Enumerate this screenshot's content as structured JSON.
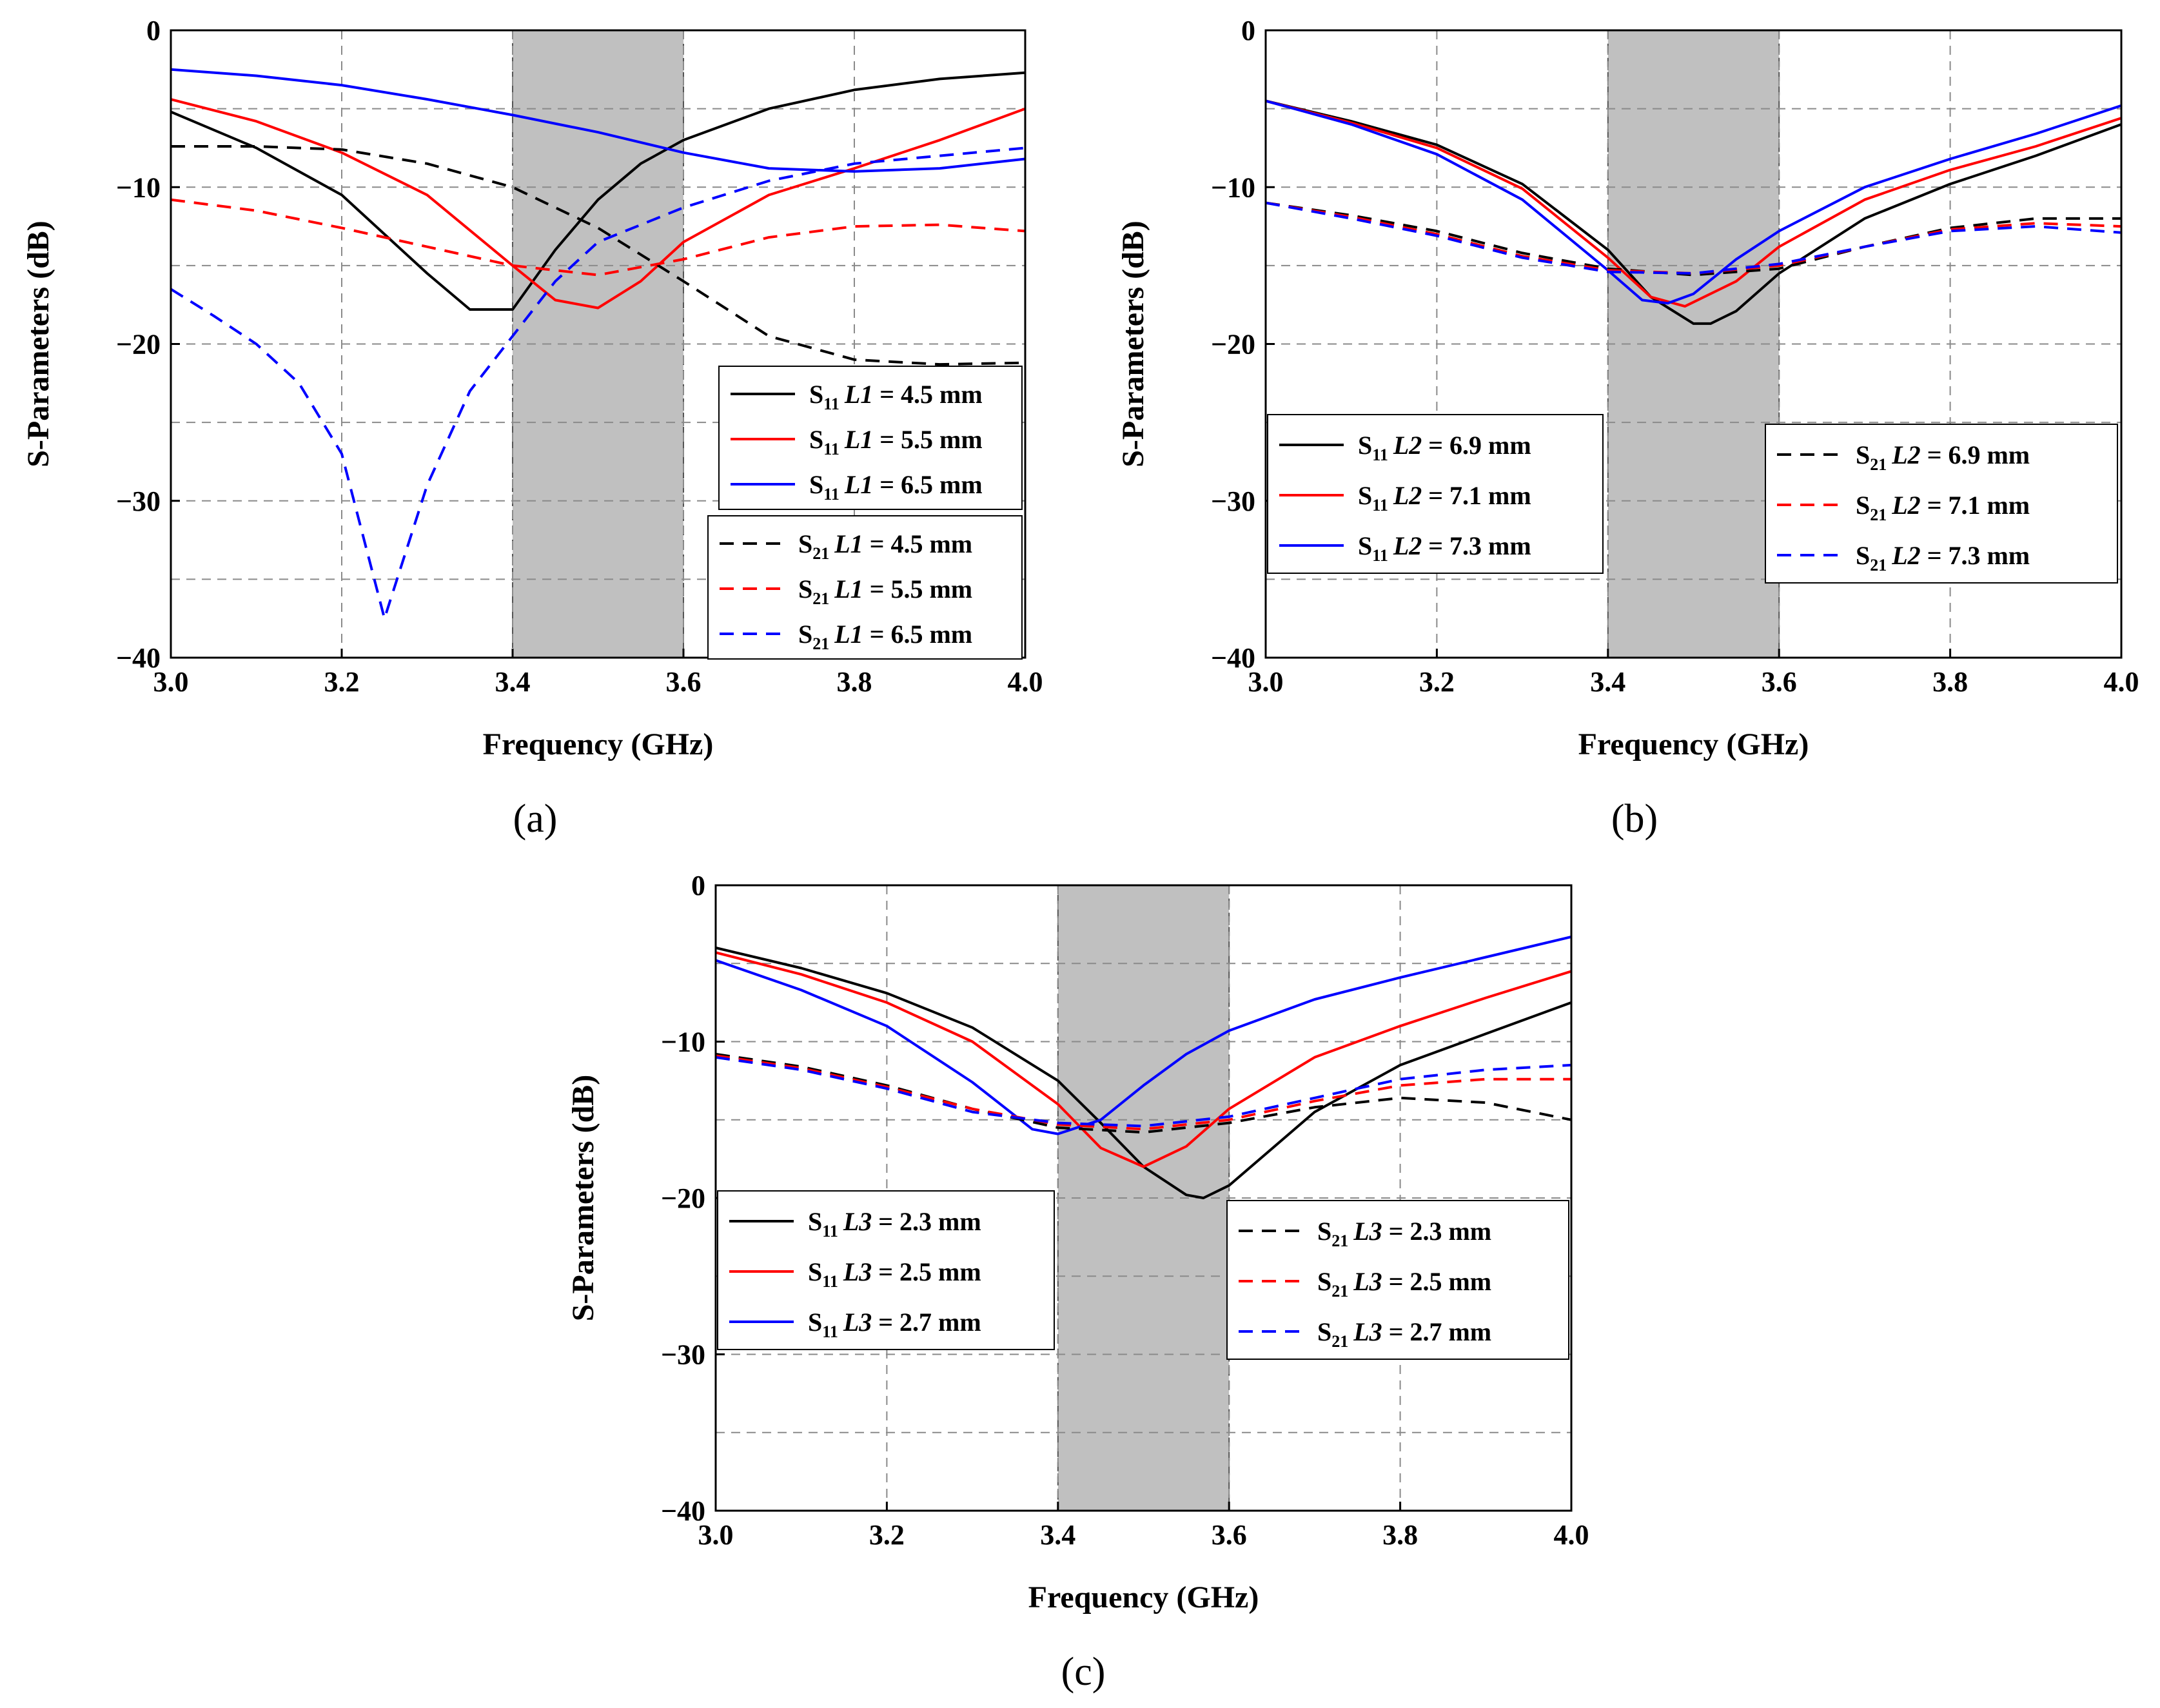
{
  "figure": {
    "captions": [
      "(a)",
      "(b)",
      "(c)"
    ]
  },
  "colors": {
    "black": "#000000",
    "red": "#ff0000",
    "blue": "#0000ff",
    "band": "#c0c0c0"
  },
  "chart_data": [
    {
      "id": "a",
      "type": "line",
      "caption": "(a)",
      "xlabel": "Frequency (GHz)",
      "ylabel": "S-Parameters (dB)",
      "xlim": [
        3.0,
        4.0
      ],
      "ylim": [
        -40,
        0
      ],
      "xticks": [
        "3.0",
        "3.2",
        "3.4",
        "3.6",
        "3.8",
        "4.0"
      ],
      "yticks": [
        "0",
        "-10",
        "-20",
        "-30",
        "-40"
      ],
      "grid": true,
      "shaded_band": [
        3.4,
        3.6
      ],
      "series": [
        {
          "name": "S11 L1 = 4.5 mm",
          "param": "S",
          "sub": "11",
          "var": "L1",
          "value": "= 4.5 mm",
          "color": "black",
          "dash": false,
          "x": [
            3.0,
            3.1,
            3.2,
            3.3,
            3.35,
            3.4,
            3.45,
            3.5,
            3.55,
            3.6,
            3.7,
            3.8,
            3.9,
            4.0
          ],
          "y": [
            -5.2,
            -7.5,
            -10.5,
            -15.5,
            -17.8,
            -17.8,
            -14.0,
            -10.8,
            -8.5,
            -7.0,
            -5.0,
            -3.8,
            -3.1,
            -2.7
          ]
        },
        {
          "name": "S11 L1 = 5.5 mm",
          "param": "S",
          "sub": "11",
          "var": "L1",
          "value": "= 5.5 mm",
          "color": "red",
          "dash": false,
          "x": [
            3.0,
            3.1,
            3.2,
            3.3,
            3.4,
            3.45,
            3.5,
            3.55,
            3.6,
            3.7,
            3.8,
            3.9,
            4.0
          ],
          "y": [
            -4.4,
            -5.8,
            -7.8,
            -10.5,
            -15.0,
            -17.2,
            -17.7,
            -16.0,
            -13.5,
            -10.5,
            -8.8,
            -7.0,
            -5.0
          ]
        },
        {
          "name": "S11 L1 = 6.5 mm",
          "param": "S",
          "sub": "11",
          "var": "L1",
          "value": "= 6.5 mm",
          "color": "blue",
          "dash": false,
          "x": [
            3.0,
            3.1,
            3.2,
            3.3,
            3.4,
            3.5,
            3.6,
            3.7,
            3.8,
            3.9,
            4.0
          ],
          "y": [
            -2.5,
            -2.9,
            -3.5,
            -4.4,
            -5.4,
            -6.5,
            -7.8,
            -8.8,
            -9.0,
            -8.8,
            -8.2
          ]
        },
        {
          "name": "S21 L1 = 4.5 mm",
          "param": "S",
          "sub": "21",
          "var": "L1",
          "value": "= 4.5 mm",
          "color": "black",
          "dash": true,
          "x": [
            3.0,
            3.1,
            3.2,
            3.3,
            3.4,
            3.5,
            3.6,
            3.7,
            3.8,
            3.9,
            4.0
          ],
          "y": [
            -7.4,
            -7.4,
            -7.6,
            -8.5,
            -10.0,
            -12.6,
            -16.0,
            -19.5,
            -21.0,
            -21.3,
            -21.2
          ]
        },
        {
          "name": "S21 L1 = 5.5 mm",
          "param": "S",
          "sub": "21",
          "var": "L1",
          "value": "= 5.5 mm",
          "color": "red",
          "dash": true,
          "x": [
            3.0,
            3.1,
            3.2,
            3.3,
            3.4,
            3.5,
            3.6,
            3.7,
            3.8,
            3.9,
            4.0
          ],
          "y": [
            -10.8,
            -11.5,
            -12.6,
            -13.8,
            -15.0,
            -15.6,
            -14.6,
            -13.2,
            -12.5,
            -12.4,
            -12.8
          ]
        },
        {
          "name": "S21 L1 = 6.5 mm",
          "param": "S",
          "sub": "21",
          "var": "L1",
          "value": "= 6.5 mm",
          "color": "blue",
          "dash": true,
          "x": [
            3.0,
            3.05,
            3.1,
            3.15,
            3.2,
            3.25,
            3.3,
            3.35,
            3.4,
            3.45,
            3.5,
            3.6,
            3.7,
            3.8,
            3.9,
            4.0
          ],
          "y": [
            -16.5,
            -18.2,
            -20.0,
            -22.5,
            -27.0,
            -37.5,
            -29.0,
            -23.0,
            -19.5,
            -16.0,
            -13.5,
            -11.3,
            -9.6,
            -8.5,
            -8.0,
            -7.5
          ]
        }
      ]
    },
    {
      "id": "b",
      "type": "line",
      "caption": "(b)",
      "xlabel": "Frequency (GHz)",
      "ylabel": "S-Parameters (dB)",
      "xlim": [
        3.0,
        4.0
      ],
      "ylim": [
        -40,
        0
      ],
      "xticks": [
        "3.0",
        "3.2",
        "3.4",
        "3.6",
        "3.8",
        "4.0"
      ],
      "yticks": [
        "0",
        "-10",
        "-20",
        "-30",
        "-40"
      ],
      "grid": true,
      "shaded_band": [
        3.4,
        3.6
      ],
      "series": [
        {
          "name": "S11 L2 = 6.9 mm",
          "param": "S",
          "sub": "11",
          "var": "L2",
          "value": "= 6.9 mm",
          "color": "black",
          "dash": false,
          "x": [
            3.0,
            3.1,
            3.2,
            3.3,
            3.4,
            3.45,
            3.5,
            3.52,
            3.55,
            3.6,
            3.7,
            3.8,
            3.9,
            4.0
          ],
          "y": [
            -4.5,
            -5.8,
            -7.3,
            -9.8,
            -14.0,
            -17.0,
            -18.7,
            -18.7,
            -17.9,
            -15.5,
            -12.0,
            -9.8,
            -8.0,
            -6.0
          ]
        },
        {
          "name": "S11 L2 = 7.1 mm",
          "param": "S",
          "sub": "11",
          "var": "L2",
          "value": "= 7.1 mm",
          "color": "red",
          "dash": false,
          "x": [
            3.0,
            3.1,
            3.2,
            3.3,
            3.4,
            3.45,
            3.49,
            3.55,
            3.6,
            3.7,
            3.8,
            3.9,
            4.0
          ],
          "y": [
            -4.5,
            -5.9,
            -7.5,
            -10.1,
            -14.5,
            -17.0,
            -17.6,
            -16.0,
            -13.8,
            -10.8,
            -8.9,
            -7.4,
            -5.6
          ]
        },
        {
          "name": "S11 L2 = 7.3 mm",
          "param": "S",
          "sub": "11",
          "var": "L2",
          "value": "= 7.3 mm",
          "color": "blue",
          "dash": false,
          "x": [
            3.0,
            3.1,
            3.2,
            3.3,
            3.4,
            3.44,
            3.47,
            3.5,
            3.55,
            3.6,
            3.7,
            3.8,
            3.9,
            4.0
          ],
          "y": [
            -4.5,
            -6.0,
            -7.9,
            -10.8,
            -15.3,
            -17.2,
            -17.4,
            -16.8,
            -14.6,
            -12.8,
            -10.0,
            -8.2,
            -6.6,
            -4.8
          ]
        },
        {
          "name": "S21 L2 = 6.9 mm",
          "param": "S",
          "sub": "21",
          "var": "L2",
          "value": "= 6.9 mm",
          "color": "black",
          "dash": true,
          "x": [
            3.0,
            3.1,
            3.2,
            3.3,
            3.4,
            3.5,
            3.6,
            3.7,
            3.8,
            3.9,
            4.0
          ],
          "y": [
            -11.0,
            -11.8,
            -12.8,
            -14.2,
            -15.2,
            -15.6,
            -15.2,
            -13.8,
            -12.6,
            -12.0,
            -12.0
          ]
        },
        {
          "name": "S21 L2 = 7.1 mm",
          "param": "S",
          "sub": "21",
          "var": "L2",
          "value": "= 7.1 mm",
          "color": "red",
          "dash": true,
          "x": [
            3.0,
            3.1,
            3.2,
            3.3,
            3.4,
            3.5,
            3.6,
            3.7,
            3.8,
            3.9,
            4.0
          ],
          "y": [
            -11.0,
            -11.9,
            -13.0,
            -14.4,
            -15.3,
            -15.5,
            -15.0,
            -13.8,
            -12.7,
            -12.3,
            -12.5
          ]
        },
        {
          "name": "S21 L2 = 7.3 mm",
          "param": "S",
          "sub": "21",
          "var": "L2",
          "value": "= 7.3 mm",
          "color": "blue",
          "dash": true,
          "x": [
            3.0,
            3.1,
            3.2,
            3.3,
            3.4,
            3.5,
            3.6,
            3.7,
            3.8,
            3.9,
            4.0
          ],
          "y": [
            -11.0,
            -12.0,
            -13.1,
            -14.5,
            -15.4,
            -15.5,
            -14.9,
            -13.8,
            -12.8,
            -12.5,
            -12.9
          ]
        }
      ]
    },
    {
      "id": "c",
      "type": "line",
      "caption": "(c)",
      "xlabel": "Frequency (GHz)",
      "ylabel": "S-Parameters (dB)",
      "xlim": [
        3.0,
        4.0
      ],
      "ylim": [
        -40,
        0
      ],
      "xticks": [
        "3.0",
        "3.2",
        "3.4",
        "3.6",
        "3.8",
        "4.0"
      ],
      "yticks": [
        "0",
        "-10",
        "-20",
        "-30",
        "-40"
      ],
      "grid": true,
      "shaded_band": [
        3.4,
        3.6
      ],
      "series": [
        {
          "name": "S11 L3 = 2.3 mm",
          "param": "S",
          "sub": "11",
          "var": "L3",
          "value": "= 2.3 mm",
          "color": "black",
          "dash": false,
          "x": [
            3.0,
            3.1,
            3.2,
            3.3,
            3.4,
            3.45,
            3.5,
            3.55,
            3.57,
            3.6,
            3.7,
            3.8,
            3.9,
            4.0
          ],
          "y": [
            -4.0,
            -5.3,
            -6.9,
            -9.1,
            -12.5,
            -15.2,
            -18.0,
            -19.8,
            -20.0,
            -19.2,
            -14.5,
            -11.5,
            -9.5,
            -7.5
          ]
        },
        {
          "name": "S11 L3 = 2.5 mm",
          "param": "S",
          "sub": "11",
          "var": "L3",
          "value": "= 2.5 mm",
          "color": "red",
          "dash": false,
          "x": [
            3.0,
            3.1,
            3.2,
            3.3,
            3.4,
            3.45,
            3.5,
            3.55,
            3.6,
            3.7,
            3.8,
            3.9,
            4.0
          ],
          "y": [
            -4.3,
            -5.7,
            -7.5,
            -10.0,
            -14.0,
            -16.8,
            -18.0,
            -16.7,
            -14.3,
            -11.0,
            -9.0,
            -7.2,
            -5.5
          ]
        },
        {
          "name": "S11 L3 = 2.7 mm",
          "param": "S",
          "sub": "11",
          "var": "L3",
          "value": "= 2.7 mm",
          "color": "blue",
          "dash": false,
          "x": [
            3.0,
            3.1,
            3.2,
            3.3,
            3.37,
            3.4,
            3.45,
            3.5,
            3.55,
            3.6,
            3.7,
            3.8,
            3.9,
            4.0
          ],
          "y": [
            -4.8,
            -6.7,
            -9.0,
            -12.6,
            -15.6,
            -15.9,
            -15.0,
            -12.8,
            -10.8,
            -9.3,
            -7.3,
            -5.9,
            -4.6,
            -3.3
          ]
        },
        {
          "name": "S21 L3 = 2.3 mm",
          "param": "S",
          "sub": "21",
          "var": "L3",
          "value": "= 2.3 mm",
          "color": "black",
          "dash": true,
          "x": [
            3.0,
            3.1,
            3.2,
            3.3,
            3.4,
            3.5,
            3.6,
            3.7,
            3.8,
            3.9,
            4.0
          ],
          "y": [
            -10.8,
            -11.6,
            -12.8,
            -14.3,
            -15.5,
            -15.8,
            -15.2,
            -14.2,
            -13.6,
            -13.9,
            -15.0
          ]
        },
        {
          "name": "S21 L3 = 2.5 mm",
          "param": "S",
          "sub": "21",
          "var": "L3",
          "value": "= 2.5 mm",
          "color": "red",
          "dash": true,
          "x": [
            3.0,
            3.1,
            3.2,
            3.3,
            3.4,
            3.5,
            3.6,
            3.7,
            3.8,
            3.9,
            4.0
          ],
          "y": [
            -10.9,
            -11.7,
            -12.9,
            -14.3,
            -15.3,
            -15.6,
            -15.0,
            -13.8,
            -12.8,
            -12.4,
            -12.4
          ]
        },
        {
          "name": "S21 L3 = 2.7 mm",
          "param": "S",
          "sub": "21",
          "var": "L3",
          "value": "= 2.7 mm",
          "color": "blue",
          "dash": true,
          "x": [
            3.0,
            3.1,
            3.2,
            3.3,
            3.4,
            3.5,
            3.6,
            3.7,
            3.8,
            3.9,
            4.0
          ],
          "y": [
            -11.0,
            -11.8,
            -13.0,
            -14.5,
            -15.2,
            -15.4,
            -14.8,
            -13.6,
            -12.4,
            -11.8,
            -11.5
          ]
        }
      ]
    }
  ]
}
